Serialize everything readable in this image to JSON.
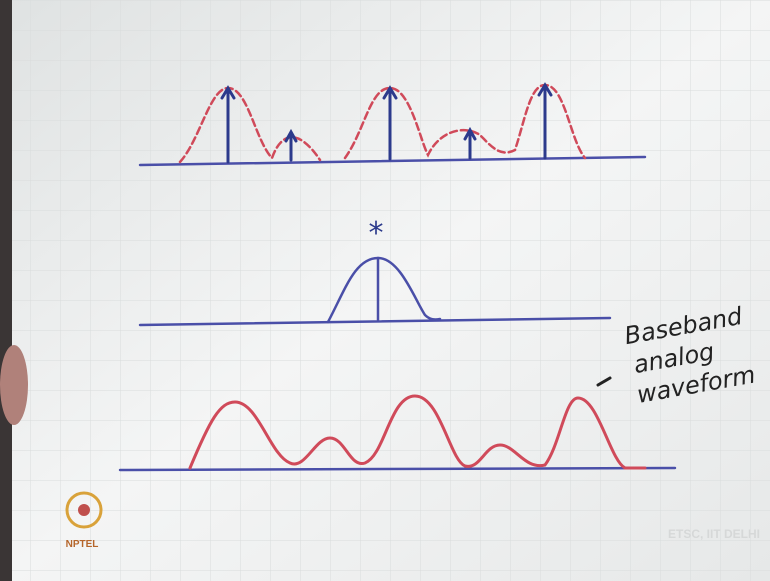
{
  "annotation": {
    "lines": [
      "Baseband",
      "analog",
      "waveform"
    ]
  },
  "operator": "*",
  "logo": "NPTEL",
  "watermark": "ETSC, IIT DELHI"
}
